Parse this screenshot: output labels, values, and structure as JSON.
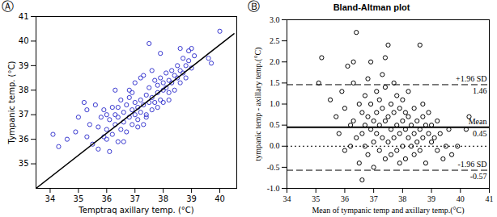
{
  "chart_data": [
    {
      "panel": "Ⓐ",
      "type": "scatter",
      "x_label": "Temptraq axillary temp. (°C)",
      "y_label": "Tympanic temp. (°C)",
      "xlim": [
        33.5,
        40.6
      ],
      "ylim": [
        34,
        41
      ],
      "xticks": [
        34,
        35,
        36,
        37,
        38,
        39,
        40
      ],
      "yticks": [
        35,
        36,
        37,
        38,
        39,
        40,
        41
      ],
      "color": "#3a3ad0",
      "marker": "circle",
      "x": [
        34.1,
        34.3,
        34.6,
        34.9,
        35.0,
        35.2,
        35.3,
        35.4,
        35.5,
        35.6,
        35.7,
        35.7,
        35.8,
        35.9,
        35.9,
        36.0,
        36.0,
        36.1,
        36.1,
        36.2,
        36.2,
        36.3,
        36.3,
        36.4,
        36.4,
        36.5,
        36.5,
        36.6,
        36.6,
        36.7,
        36.7,
        36.8,
        36.8,
        36.9,
        36.9,
        37.0,
        37.0,
        37.0,
        37.1,
        37.1,
        37.2,
        37.2,
        37.3,
        37.3,
        37.4,
        37.4,
        37.5,
        37.5,
        37.5,
        37.6,
        37.6,
        37.7,
        37.7,
        37.8,
        37.8,
        37.9,
        37.9,
        38.0,
        38.0,
        38.0,
        38.1,
        38.1,
        38.2,
        38.2,
        38.3,
        38.3,
        38.4,
        38.4,
        38.5,
        38.5,
        38.6,
        38.6,
        38.7,
        38.7,
        38.8,
        38.8,
        38.9,
        38.9,
        39.0,
        39.0,
        39.1,
        39.6,
        39.7,
        40.0,
        36.0,
        36.4,
        36.8,
        37.2,
        37.6,
        37.9,
        36.6,
        37.1,
        37.4,
        37.8,
        38.2,
        36.3,
        35.3,
        36.9,
        37.3,
        38.6
      ],
      "values": [
        36.2,
        35.7,
        36.0,
        36.3,
        36.9,
        37.5,
        36.1,
        36.6,
        35.8,
        37.4,
        36.5,
        35.6,
        36.9,
        37.2,
        36.1,
        36.4,
        37.0,
        35.5,
        36.8,
        37.3,
        36.2,
        36.6,
        37.0,
        35.9,
        36.9,
        37.6,
        36.4,
        37.1,
        36.7,
        36.3,
        37.4,
        36.9,
        37.7,
        37.2,
        36.6,
        37.0,
        37.5,
        38.3,
        36.8,
        37.3,
        37.6,
        37.1,
        38.6,
        37.4,
        36.9,
        37.8,
        37.5,
        38.1,
        39.9,
        37.2,
        37.7,
        38.4,
        37.5,
        37.9,
        38.2,
        37.6,
        38.5,
        38.0,
        38.3,
        37.5,
        38.7,
        38.1,
        38.4,
        37.9,
        38.8,
        38.3,
        38.6,
        38.0,
        39.0,
        38.5,
        38.8,
        38.3,
        39.3,
        38.7,
        39.0,
        38.5,
        39.6,
        39.2,
        39.7,
        38.9,
        39.4,
        39.3,
        39.1,
        40.4,
        36.0,
        37.3,
        38.0,
        38.5,
        38.8,
        39.5,
        35.9,
        36.5,
        37.0,
        37.3,
        37.6,
        38.0,
        37.2,
        37.9,
        36.6,
        39.7
      ],
      "fit_line": {
        "x": [
          33.5,
          40.5
        ],
        "y": [
          34.0,
          40.3
        ],
        "color": "#000000",
        "line_style": "solid"
      }
    },
    {
      "panel": "Ⓑ",
      "type": "scatter",
      "title": "Bland-Altman plot",
      "x_label": "Mean of tympanic temp and axillary temp.(°C)",
      "y_label": "tympanic temp - axillary temp.(°C)",
      "xlim": [
        34,
        41
      ],
      "ylim": [
        -1,
        3
      ],
      "xticks": [
        34,
        35,
        36,
        37,
        38,
        39,
        40,
        41
      ],
      "yticks": [
        {
          "value": -1,
          "label": "-1.0"
        },
        {
          "value": -0.5,
          "label": "-0.5"
        },
        {
          "value": 0,
          "label": "0.0"
        },
        {
          "value": 0.5,
          "label": "0.5"
        },
        {
          "value": 1,
          "label": "1.0"
        },
        {
          "value": 1.5,
          "label": "1.5"
        },
        {
          "value": 2,
          "label": "2.0"
        },
        {
          "value": 2.5,
          "label": "2.5"
        },
        {
          "value": 3,
          "label": "3.0"
        }
      ],
      "color": "#000000",
      "marker": "circle",
      "x": [
        35.1,
        35.2,
        35.5,
        35.7,
        35.8,
        35.9,
        36.0,
        36.0,
        36.1,
        36.2,
        36.2,
        36.3,
        36.3,
        36.4,
        36.4,
        36.5,
        36.5,
        36.6,
        36.6,
        36.6,
        36.7,
        36.7,
        36.7,
        36.8,
        36.8,
        36.8,
        36.9,
        36.9,
        36.9,
        37.0,
        37.0,
        37.0,
        37.1,
        37.1,
        37.1,
        37.2,
        37.2,
        37.2,
        37.3,
        37.3,
        37.3,
        37.4,
        37.4,
        37.4,
        37.5,
        37.5,
        37.5,
        37.6,
        37.6,
        37.6,
        37.7,
        37.7,
        37.7,
        37.8,
        37.8,
        37.8,
        37.9,
        37.9,
        38.0,
        38.0,
        38.0,
        38.1,
        38.1,
        38.1,
        38.2,
        38.2,
        38.2,
        38.3,
        38.3,
        38.4,
        38.4,
        38.4,
        38.5,
        38.5,
        38.6,
        38.6,
        38.6,
        38.7,
        38.7,
        38.8,
        38.8,
        38.9,
        38.9,
        39.0,
        39.0,
        39.1,
        39.2,
        39.2,
        39.3,
        39.4,
        39.5,
        39.6,
        39.7,
        39.9,
        40.2,
        40.3,
        37.4,
        36.3,
        37.9,
        38.7
      ],
      "values": [
        1.5,
        2.1,
        1.1,
        0.7,
        0.3,
        1.3,
        0.9,
        -0.1,
        1.9,
        0.5,
        0.0,
        1.5,
        0.6,
        2.7,
        0.2,
        1.0,
        -0.4,
        0.8,
        0.3,
        -0.8,
        1.2,
        0.5,
        0.0,
        1.6,
        0.7,
        -0.2,
        0.4,
        1.0,
        2.0,
        0.6,
        0.1,
        -0.5,
        1.3,
        0.8,
        0.3,
        0.5,
        -0.1,
        1.1,
        0.9,
        0.2,
        1.7,
        0.6,
        -0.3,
        1.4,
        2.4,
        0.7,
        0.1,
        0.4,
        1.0,
        -0.2,
        0.8,
        0.2,
        1.5,
        0.5,
        -0.1,
        1.2,
        0.3,
        0.9,
        0.6,
        0.0,
        1.1,
        0.4,
        -0.3,
        0.8,
        0.2,
        0.7,
        1.3,
        0.5,
        0.0,
        0.3,
        0.9,
        -0.2,
        0.6,
        0.1,
        0.4,
        2.4,
        -0.1,
        0.2,
        0.7,
        0.5,
        -0.4,
        0.3,
        0.8,
        0.1,
        0.5,
        0.2,
        -0.1,
        0.6,
        0.3,
        -0.3,
        0.0,
        0.4,
        -0.2,
        0.0,
        0.4,
        0.7,
        2.1,
        2.0,
        -0.4,
        1.0
      ],
      "reference_lines": [
        {
          "value": 1.46,
          "label": "+1.96 SD",
          "line_style": "dashed"
        },
        {
          "value": 0.45,
          "label": "Mean",
          "line_style": "solid"
        },
        {
          "value": 0,
          "line_style": "dotted"
        },
        {
          "value": -0.57,
          "label": "-1.96 SD",
          "line_style": "dashed"
        }
      ]
    }
  ]
}
